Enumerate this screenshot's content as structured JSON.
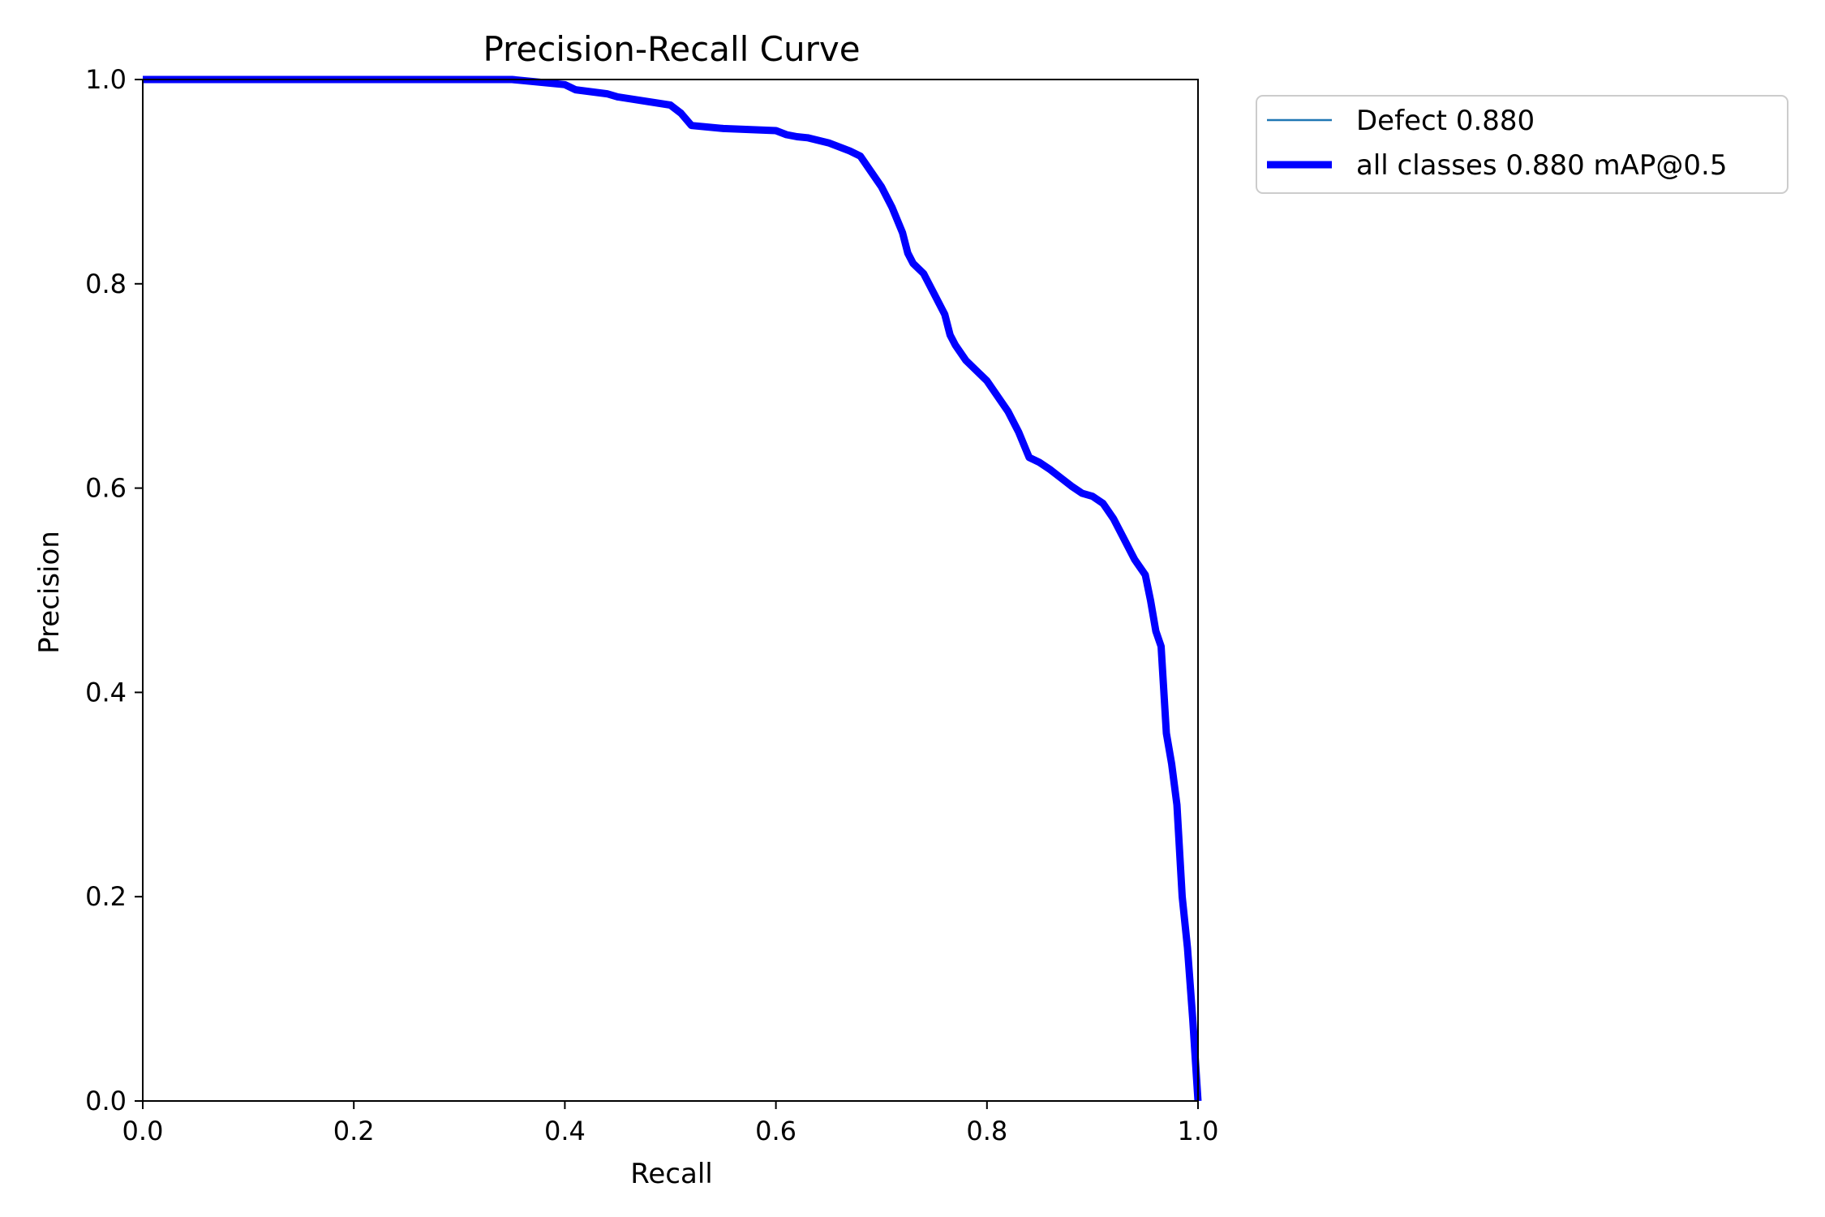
{
  "chart_data": {
    "type": "line",
    "title": "Precision-Recall Curve",
    "xlabel": "Recall",
    "ylabel": "Precision",
    "xlim": [
      0,
      1
    ],
    "ylim": [
      0,
      1
    ],
    "xticks": [
      "0.0",
      "0.2",
      "0.4",
      "0.6",
      "0.8",
      "1.0"
    ],
    "yticks": [
      "0.0",
      "0.2",
      "0.4",
      "0.6",
      "0.8",
      "1.0"
    ],
    "grid": false,
    "legend_position": "outside-top-right",
    "series": [
      {
        "name": "Defect 0.880",
        "color": "#1f77b4",
        "style": "thin",
        "x": [
          0.0,
          0.35,
          0.4,
          0.41,
          0.44,
          0.45,
          0.5,
          0.51,
          0.52,
          0.55,
          0.6,
          0.61,
          0.62,
          0.63,
          0.65,
          0.67,
          0.68,
          0.69,
          0.7,
          0.705,
          0.71,
          0.72,
          0.725,
          0.73,
          0.74,
          0.75,
          0.76,
          0.765,
          0.77,
          0.78,
          0.79,
          0.8,
          0.81,
          0.82,
          0.83,
          0.84,
          0.85,
          0.86,
          0.87,
          0.88,
          0.89,
          0.9,
          0.91,
          0.92,
          0.93,
          0.94,
          0.95,
          0.955,
          0.96,
          0.965,
          0.97,
          0.975,
          0.98,
          0.985,
          0.99,
          0.995,
          1.0
        ],
        "y": [
          1.0,
          1.0,
          0.995,
          0.99,
          0.986,
          0.983,
          0.975,
          0.967,
          0.955,
          0.952,
          0.95,
          0.946,
          0.944,
          0.943,
          0.938,
          0.93,
          0.925,
          0.91,
          0.895,
          0.885,
          0.875,
          0.85,
          0.83,
          0.82,
          0.81,
          0.79,
          0.77,
          0.75,
          0.74,
          0.725,
          0.715,
          0.705,
          0.69,
          0.675,
          0.655,
          0.63,
          0.625,
          0.618,
          0.61,
          0.602,
          0.595,
          0.592,
          0.585,
          0.57,
          0.55,
          0.53,
          0.515,
          0.49,
          0.46,
          0.445,
          0.36,
          0.33,
          0.29,
          0.2,
          0.15,
          0.08,
          0.0
        ]
      },
      {
        "name": "all classes 0.880 mAP@0.5",
        "color": "#0000ff",
        "style": "thick",
        "x": [
          0.0,
          0.35,
          0.4,
          0.41,
          0.44,
          0.45,
          0.5,
          0.51,
          0.52,
          0.55,
          0.6,
          0.61,
          0.62,
          0.63,
          0.65,
          0.67,
          0.68,
          0.69,
          0.7,
          0.705,
          0.71,
          0.72,
          0.725,
          0.73,
          0.74,
          0.75,
          0.76,
          0.765,
          0.77,
          0.78,
          0.79,
          0.8,
          0.81,
          0.82,
          0.83,
          0.84,
          0.85,
          0.86,
          0.87,
          0.88,
          0.89,
          0.9,
          0.91,
          0.92,
          0.93,
          0.94,
          0.95,
          0.955,
          0.96,
          0.965,
          0.97,
          0.975,
          0.98,
          0.985,
          0.99,
          0.995,
          1.0
        ],
        "y": [
          1.0,
          1.0,
          0.995,
          0.99,
          0.986,
          0.983,
          0.975,
          0.967,
          0.955,
          0.952,
          0.95,
          0.946,
          0.944,
          0.943,
          0.938,
          0.93,
          0.925,
          0.91,
          0.895,
          0.885,
          0.875,
          0.85,
          0.83,
          0.82,
          0.81,
          0.79,
          0.77,
          0.75,
          0.74,
          0.725,
          0.715,
          0.705,
          0.69,
          0.675,
          0.655,
          0.63,
          0.625,
          0.618,
          0.61,
          0.602,
          0.595,
          0.592,
          0.585,
          0.57,
          0.55,
          0.53,
          0.515,
          0.49,
          0.46,
          0.445,
          0.36,
          0.33,
          0.29,
          0.2,
          0.15,
          0.08,
          0.0
        ]
      }
    ]
  }
}
